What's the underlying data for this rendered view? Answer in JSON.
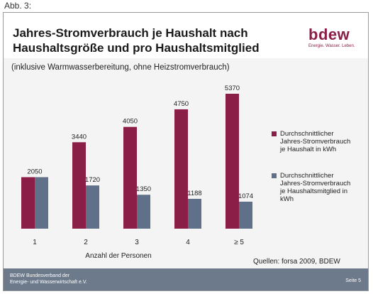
{
  "figure_label": "Abb. 3:",
  "title": {
    "line1": "Jahres-Stromverbrauch je Haushalt nach",
    "line2": "Haushaltsgröße und pro Haushaltsmitglied"
  },
  "subtitle": "(inklusive Warmwasserbereitung, ohne Heizstromverbrauch)",
  "logo": {
    "word": "bdew",
    "tagline": "Energie. Wasser. Leben."
  },
  "source": "Quellen: forsa 2009, BDEW",
  "footer": {
    "org_line1": "BDEW Bundesverband der",
    "org_line2": "Energie- und Wasserwirtschaft e.V.",
    "page": "Seite 5"
  },
  "colors": {
    "series1": "#8b1e46",
    "series2": "#5f7088",
    "footer": "#6c7a8c"
  },
  "chart_data": {
    "type": "bar",
    "categories": [
      "1",
      "2",
      "3",
      "4",
      "≥  5"
    ],
    "xlabel": "Anzahl der Personen",
    "ylabel": "",
    "ylim": [
      0,
      5370
    ],
    "grid": false,
    "legend_position": "right",
    "series": [
      {
        "name": "Durchschnittlicher Jahres-Stromverbrauch je Haushalt in kWh",
        "legend_lines": [
          "Durchschnittlicher",
          "Jahres-Stromverbrauch",
          "je Haushalt in kWh"
        ],
        "values": [
          2050,
          3440,
          4050,
          4750,
          5370
        ],
        "labels": [
          "2050",
          "3440",
          "4050",
          "4750",
          "5370"
        ]
      },
      {
        "name": "Durchschnittlicher Jahres-Stromverbrauch je Haushaltsmitglied in kWh",
        "legend_lines": [
          "Durchschnittlicher",
          "Jahres-Stromverbrauch",
          "je Haushaltsmitglied in",
          "kWh"
        ],
        "values": [
          2050,
          1720,
          1350,
          1188,
          1074
        ],
        "labels": [
          "",
          "1720",
          "1350",
          "1188",
          "1074"
        ]
      }
    ]
  }
}
